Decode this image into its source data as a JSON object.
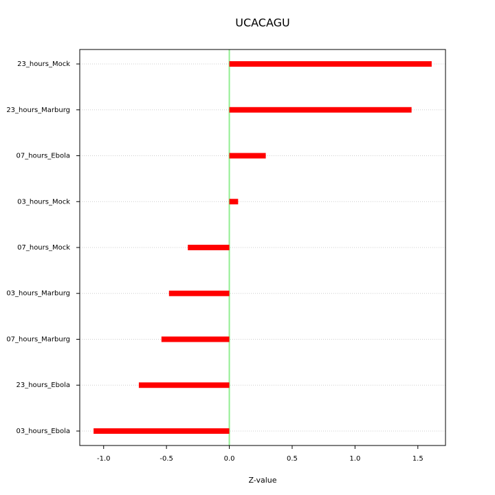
{
  "chart_data": {
    "type": "hbar",
    "title": "UCACAGU",
    "x_label": "Z-value",
    "categories": [
      "23_hours_Mock",
      "23_hours_Marburg",
      "07_hours_Ebola",
      "03_hours_Mock",
      "07_hours_Mock",
      "03_hours_Marburg",
      "07_hours_Marburg",
      "23_hours_Ebola",
      "03_hours_Ebola"
    ],
    "values": [
      1.61,
      1.45,
      0.29,
      0.07,
      -0.33,
      -0.48,
      -0.54,
      -0.72,
      -1.08
    ],
    "color": "#ff0000",
    "xlim": [
      -1.19,
      1.72
    ],
    "xticks": [
      {
        "value": -1.0,
        "label": "-1.0"
      },
      {
        "value": -0.5,
        "label": "-0.5"
      },
      {
        "value": 0,
        "label": "0.0"
      },
      0.5,
      {
        "value": 1.0,
        "label": "1.0"
      },
      {
        "value": 1.5,
        "label": "1.5"
      }
    ],
    "grid": true
  }
}
